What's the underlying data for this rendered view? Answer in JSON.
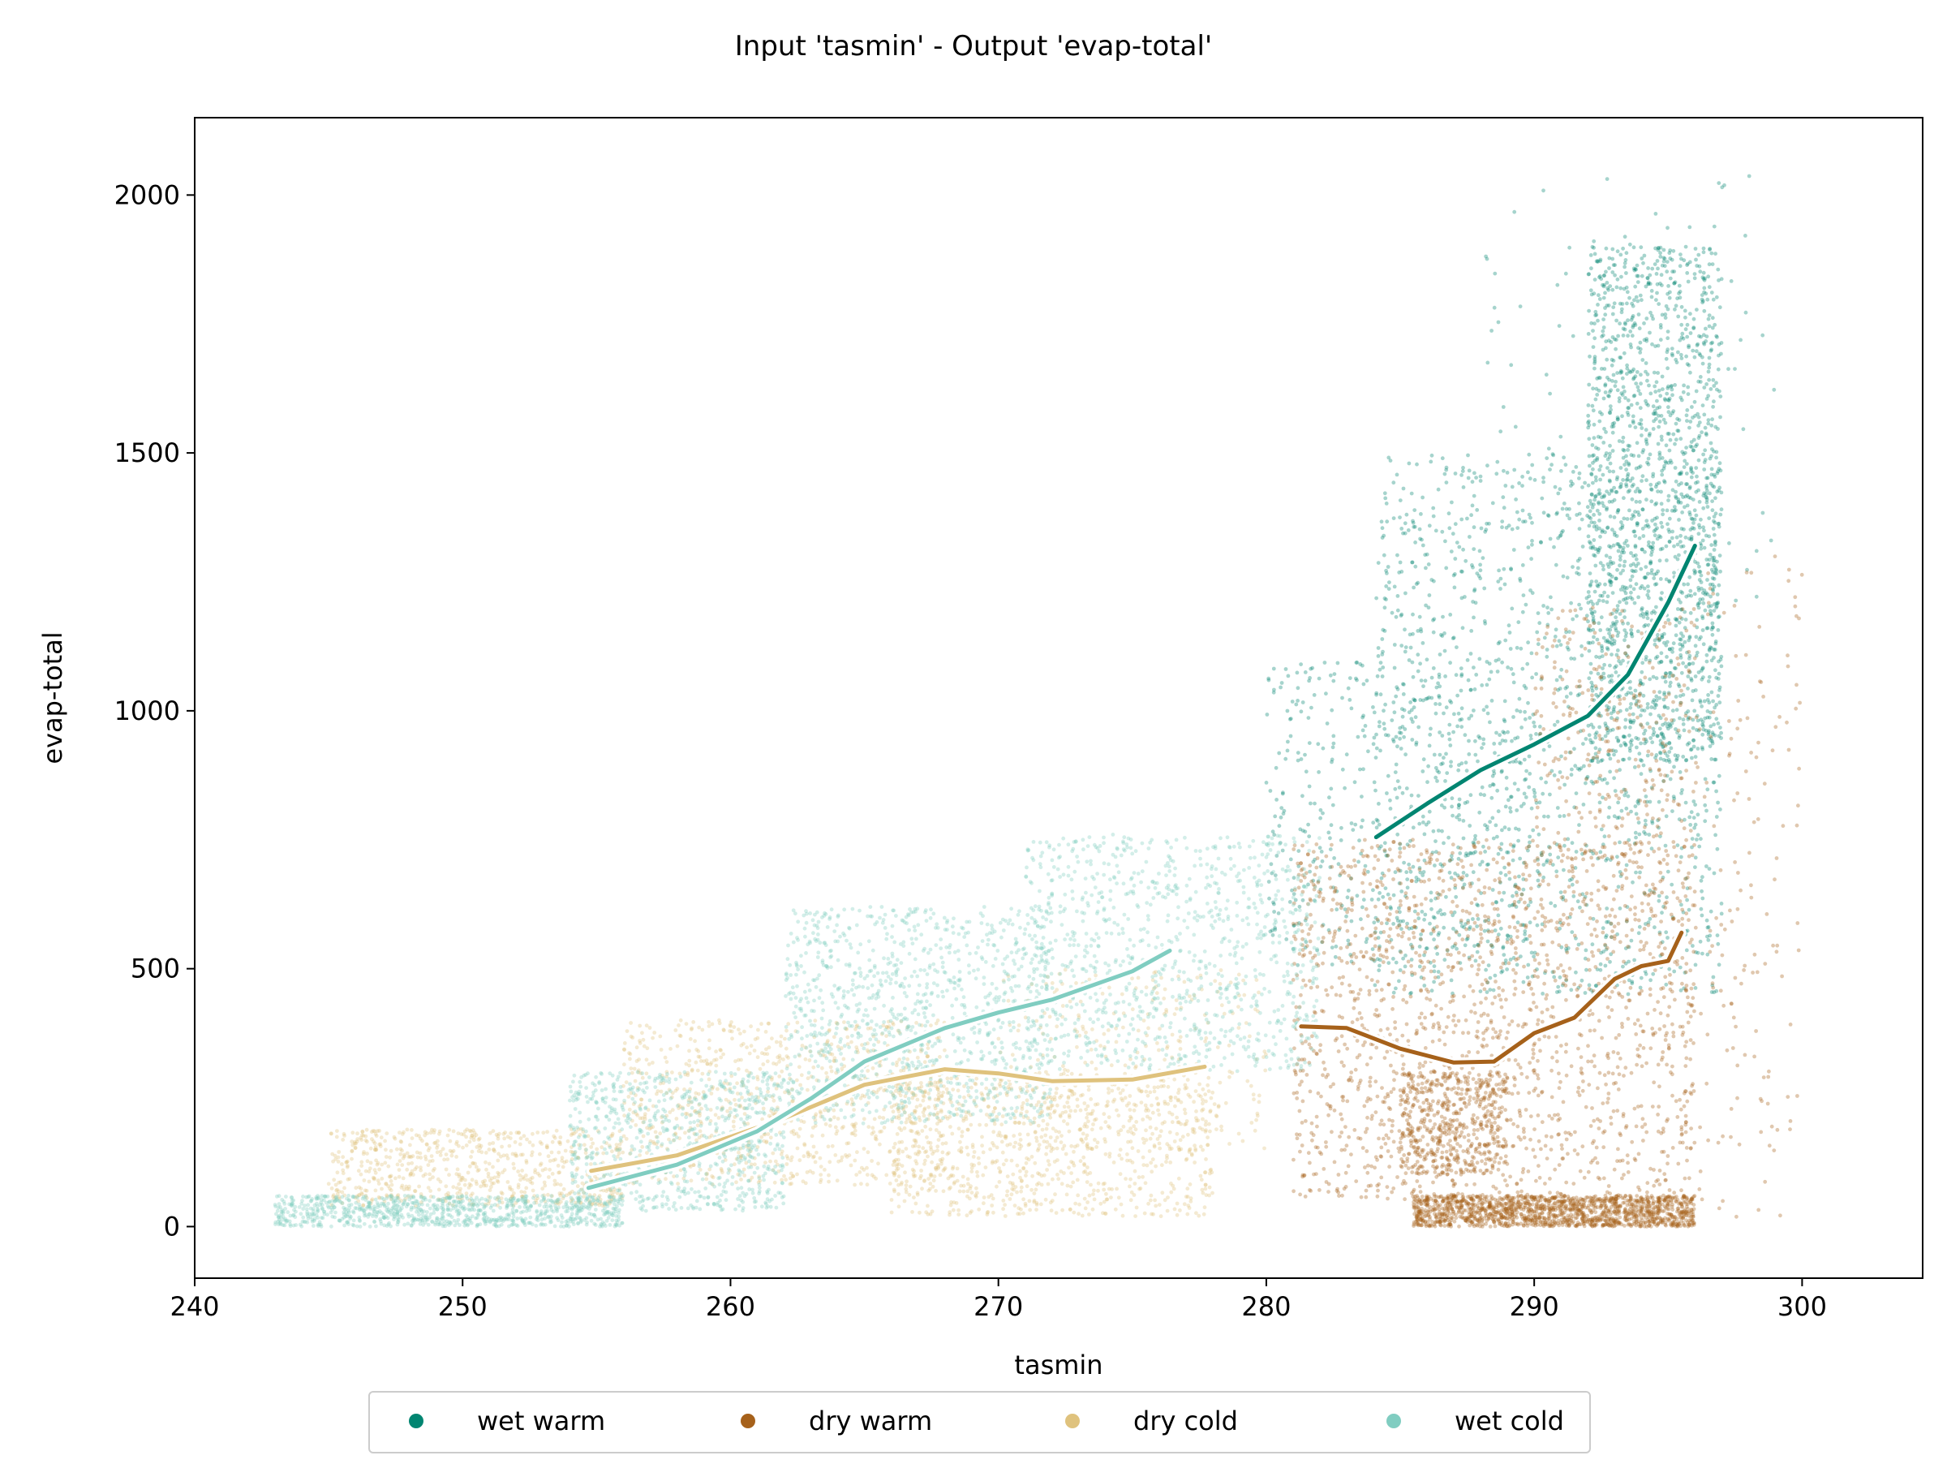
{
  "chart_data": {
    "type": "scatter",
    "title": "Input 'tasmin' - Output 'evap-total'",
    "xlabel": "tasmin",
    "ylabel": "evap-total",
    "xlim": [
      240,
      304.5
    ],
    "ylim": [
      -100,
      2150
    ],
    "xticks": [
      240,
      250,
      260,
      270,
      280,
      290,
      300
    ],
    "yticks": [
      0,
      500,
      1000,
      1500,
      2000
    ],
    "grid": false,
    "legend_position": "below plot, centered",
    "series": [
      {
        "name": "wet warm",
        "color": "#018571",
        "point_cloud": [
          {
            "x": [
              284,
              297
            ],
            "y": [
              450,
              1500
            ],
            "n": 1400
          },
          {
            "x": [
              292,
              297
            ],
            "y": [
              900,
              1900
            ],
            "n": 1500
          },
          {
            "x": [
              280,
              290
            ],
            "y": [
              500,
              1100
            ],
            "n": 500
          },
          {
            "x": [
              288,
              299
            ],
            "y": [
              1200,
              2050
            ],
            "n": 120
          }
        ],
        "trend": [
          [
            284.1,
            755
          ],
          [
            286,
            820
          ],
          [
            288,
            885
          ],
          [
            290,
            935
          ],
          [
            292,
            990
          ],
          [
            293.5,
            1070
          ],
          [
            295,
            1210
          ],
          [
            296,
            1320
          ]
        ]
      },
      {
        "name": "dry warm",
        "color": "#a6611a",
        "point_cloud": [
          {
            "x": [
              281,
              296
            ],
            "y": [
              50,
              750
            ],
            "n": 1800
          },
          {
            "x": [
              285.5,
              296
            ],
            "y": [
              0,
              60
            ],
            "n": 1500
          },
          {
            "x": [
              285,
              289
            ],
            "y": [
              100,
              300
            ],
            "n": 500
          },
          {
            "x": [
              290,
              296
            ],
            "y": [
              700,
              1200
            ],
            "n": 300
          },
          {
            "x": [
              296,
              300
            ],
            "y": [
              0,
              1300
            ],
            "n": 150
          }
        ],
        "trend": [
          [
            281.3,
            388
          ],
          [
            283,
            385
          ],
          [
            285,
            345
          ],
          [
            287,
            318
          ],
          [
            288.5,
            320
          ],
          [
            290,
            375
          ],
          [
            291.5,
            405
          ],
          [
            293,
            480
          ],
          [
            294,
            505
          ],
          [
            295,
            515
          ],
          [
            295.5,
            570
          ]
        ]
      },
      {
        "name": "dry cold",
        "color": "#dfc27d",
        "point_cloud": [
          {
            "x": [
              245,
              256
            ],
            "y": [
              40,
              190
            ],
            "n": 700
          },
          {
            "x": [
              256,
              268
            ],
            "y": [
              80,
              400
            ],
            "n": 900
          },
          {
            "x": [
              266,
              278
            ],
            "y": [
              20,
              300
            ],
            "n": 900
          },
          {
            "x": [
              270,
              280
            ],
            "y": [
              150,
              500
            ],
            "n": 300
          }
        ],
        "trend": [
          [
            254.8,
            108
          ],
          [
            258,
            138
          ],
          [
            262,
            210
          ],
          [
            265,
            275
          ],
          [
            268,
            305
          ],
          [
            270,
            297
          ],
          [
            272,
            282
          ],
          [
            275,
            285
          ],
          [
            277.7,
            310
          ]
        ]
      },
      {
        "name": "wet cold",
        "color": "#80cdc1",
        "point_cloud": [
          {
            "x": [
              243,
              256
            ],
            "y": [
              0,
              60
            ],
            "n": 900
          },
          {
            "x": [
              254,
              262
            ],
            "y": [
              30,
              300
            ],
            "n": 800
          },
          {
            "x": [
              262,
              272
            ],
            "y": [
              200,
              620
            ],
            "n": 1100
          },
          {
            "x": [
              271,
              282
            ],
            "y": [
              300,
              760
            ],
            "n": 1000
          }
        ],
        "trend": [
          [
            254.7,
            75
          ],
          [
            258,
            120
          ],
          [
            261,
            185
          ],
          [
            263,
            248
          ],
          [
            265,
            320
          ],
          [
            268,
            385
          ],
          [
            270,
            415
          ],
          [
            272,
            440
          ],
          [
            275,
            495
          ],
          [
            276.4,
            535
          ]
        ]
      }
    ],
    "legend": [
      "wet warm",
      "dry warm",
      "dry cold",
      "wet cold"
    ]
  }
}
